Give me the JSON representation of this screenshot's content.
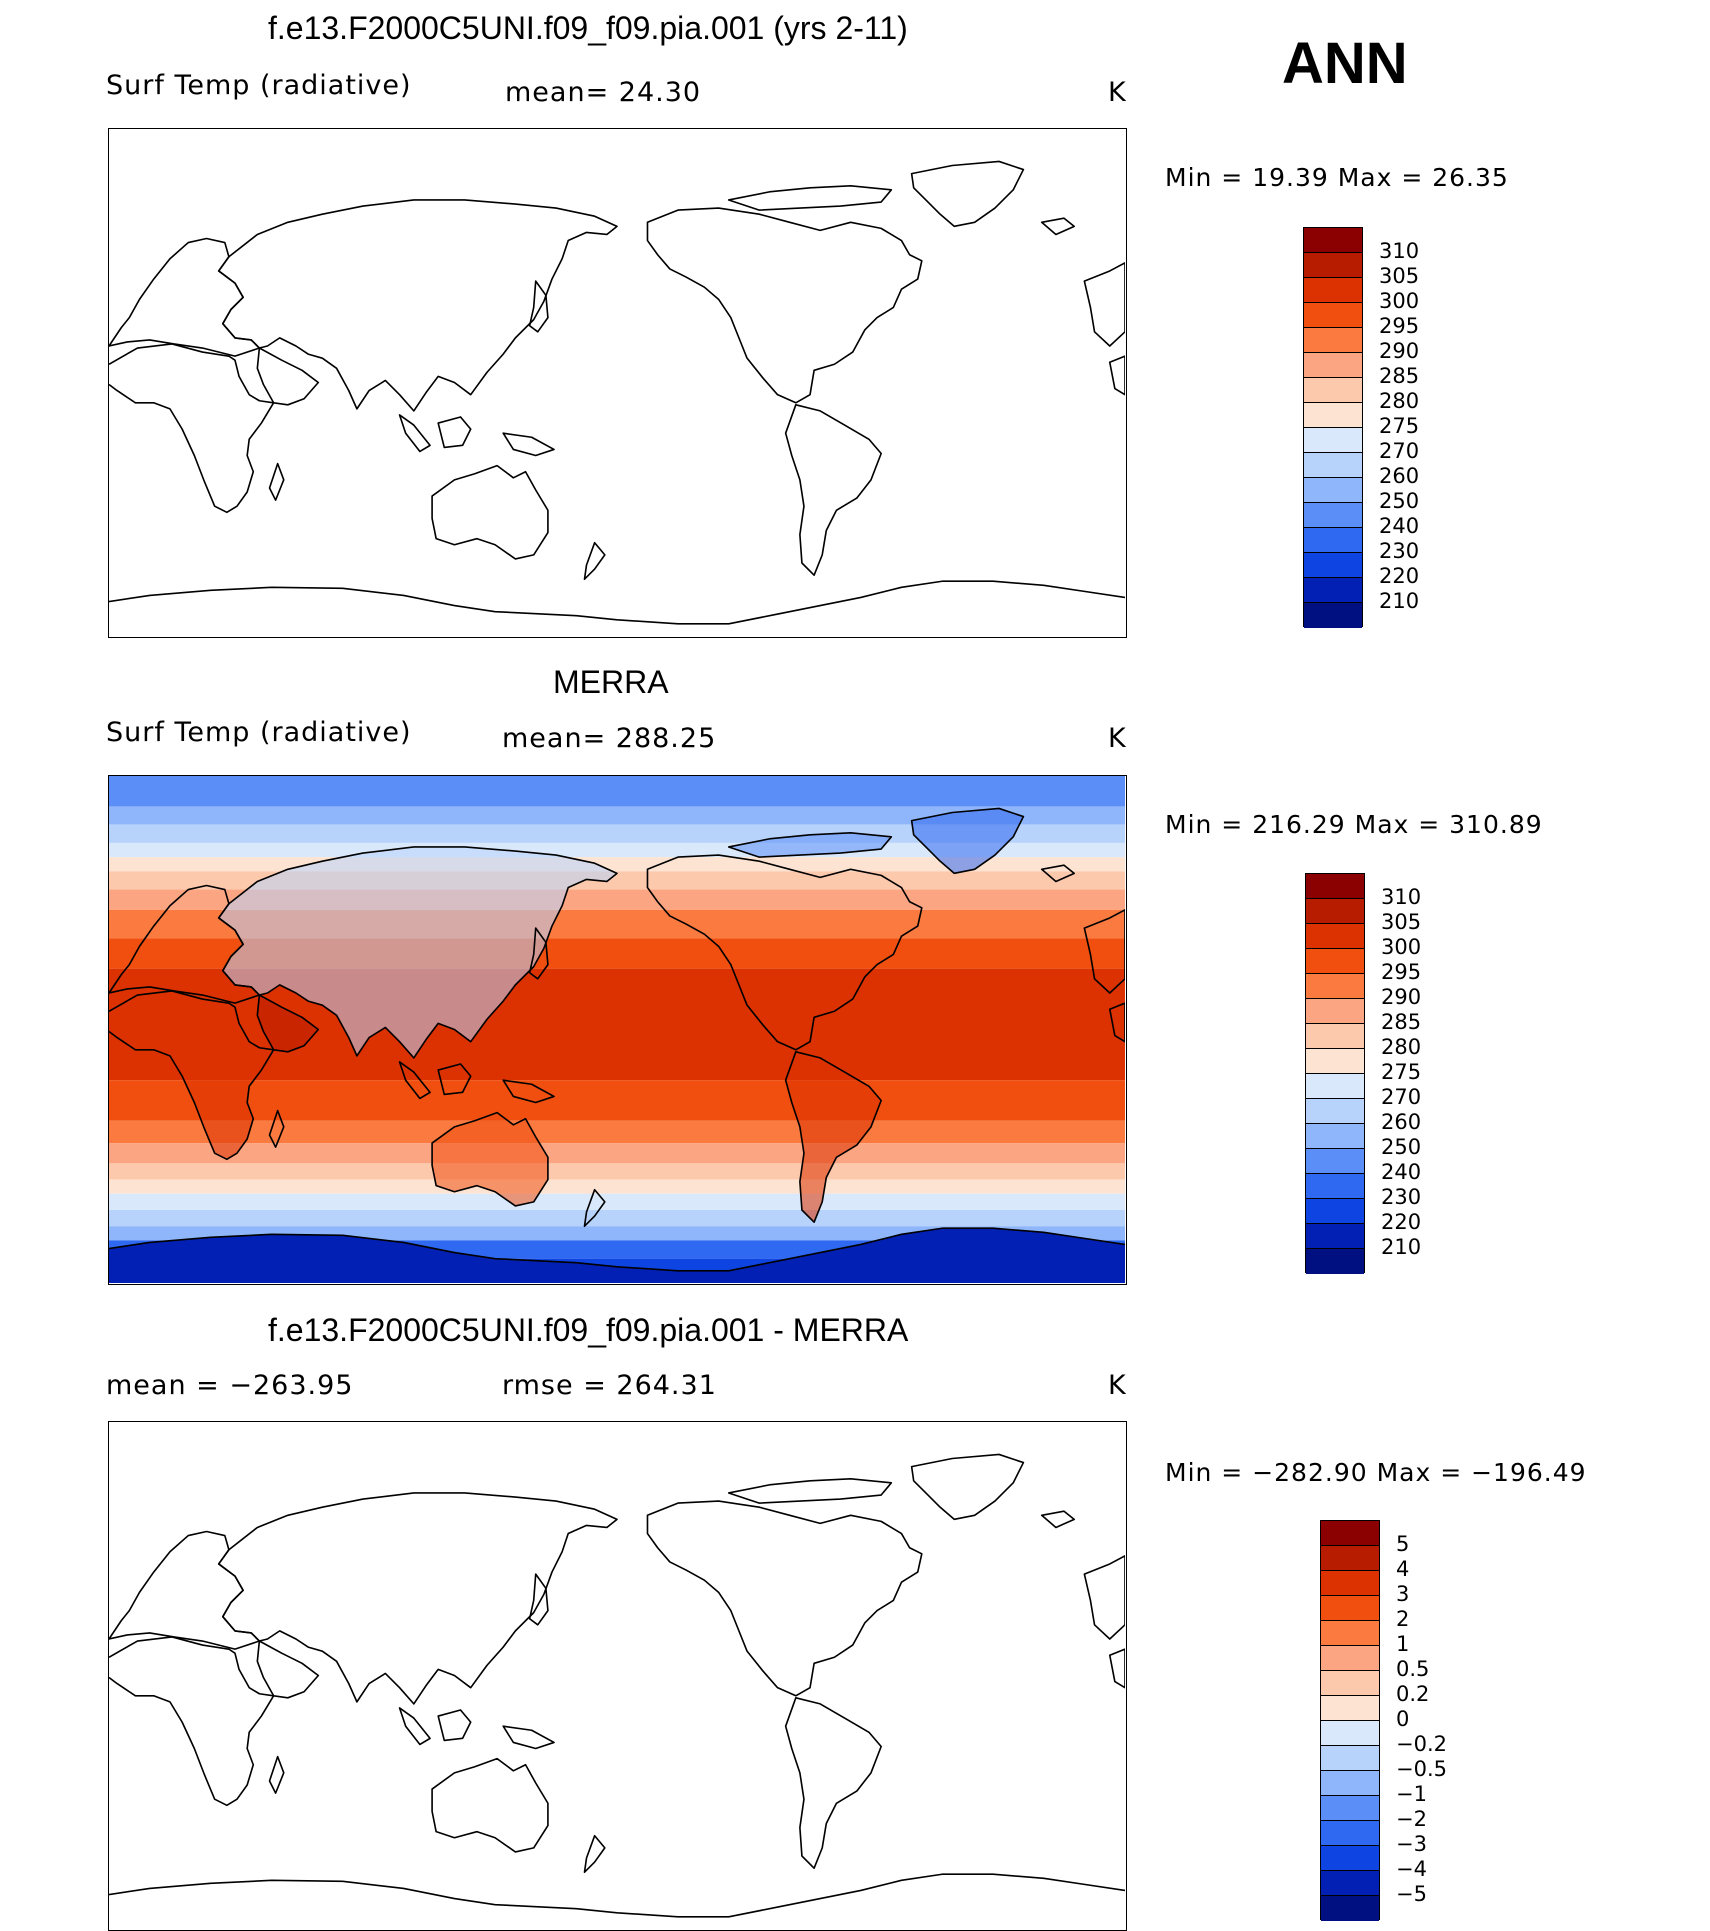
{
  "season": "ANN",
  "panels": [
    {
      "title": "f.e13.F2000C5UNI.f09_f09.pia.001 (yrs 2-11)",
      "left_label": "Surf Temp (radiative)",
      "center_label": "mean=  24.30",
      "units": "K",
      "minmax": "Min =   19.39  Max =   26.35",
      "fill": "none",
      "colorbar": {
        "labels": [
          "310",
          "305",
          "300",
          "295",
          "290",
          "285",
          "280",
          "275",
          "270",
          "260",
          "250",
          "240",
          "230",
          "220",
          "210"
        ],
        "colors": [
          "#8b0000",
          "#b81c00",
          "#dc3100",
          "#f04f10",
          "#fb7a40",
          "#fca582",
          "#fdc9ad",
          "#fde4d2",
          "#d9e9fb",
          "#b8d3fb",
          "#8fb6fb",
          "#5b8ef7",
          "#2f68f1",
          "#0d44e2",
          "#0320b5",
          "#001080"
        ]
      }
    },
    {
      "title": "MERRA",
      "left_label": "Surf Temp (radiative)",
      "center_label": "mean= 288.25",
      "units": "K",
      "minmax": "Min = 216.29  Max = 310.89",
      "fill": "temperature",
      "colorbar": {
        "labels": [
          "310",
          "305",
          "300",
          "295",
          "290",
          "285",
          "280",
          "275",
          "270",
          "260",
          "250",
          "240",
          "230",
          "220",
          "210"
        ],
        "colors": [
          "#8b0000",
          "#b81c00",
          "#dc3100",
          "#f04f10",
          "#fb7a40",
          "#fca582",
          "#fdc9ad",
          "#fde4d2",
          "#d9e9fb",
          "#b8d3fb",
          "#8fb6fb",
          "#5b8ef7",
          "#2f68f1",
          "#0d44e2",
          "#0320b5",
          "#001080"
        ]
      }
    },
    {
      "title": "f.e13.F2000C5UNI.f09_f09.pia.001 - MERRA",
      "left_label": "mean = −263.95",
      "center_label": "rmse  =  264.31",
      "units": "K",
      "minmax": "Min = −282.90  Max = −196.49",
      "fill": "none",
      "colorbar": {
        "labels": [
          "5",
          "4",
          "3",
          "2",
          "1",
          "0.5",
          "0.2",
          "0",
          "−0.2",
          "−0.5",
          "−1",
          "−2",
          "−3",
          "−4",
          "−5"
        ],
        "colors": [
          "#8b0000",
          "#b81c00",
          "#dc3100",
          "#f04f10",
          "#fb7a40",
          "#fca582",
          "#fdc9ad",
          "#fde4d2",
          "#d9e9fb",
          "#b8d3fb",
          "#8fb6fb",
          "#5b8ef7",
          "#2f68f1",
          "#0d44e2",
          "#0320b5",
          "#001080"
        ]
      }
    }
  ]
}
